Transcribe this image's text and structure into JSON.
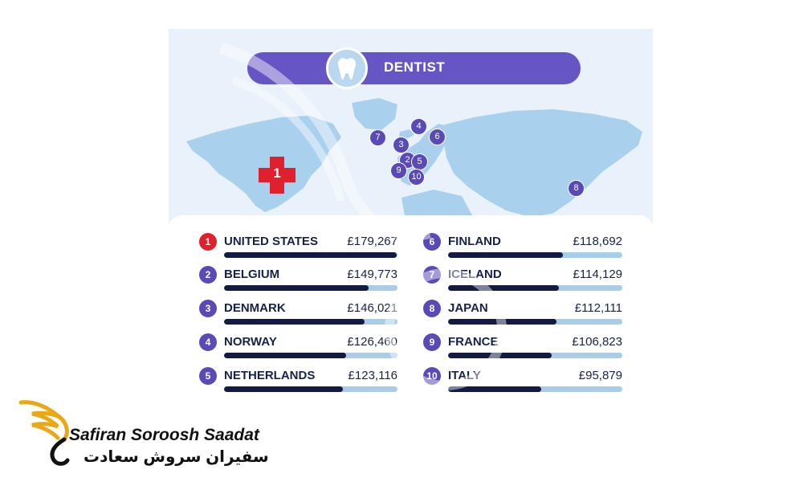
{
  "header": {
    "title": "DENTIST",
    "icon": "tooth-icon"
  },
  "colors": {
    "header": "#6655c4",
    "pin": "#5a4ab8",
    "first_place": "#e0202c",
    "bar_fill": "#121a45",
    "bar_track": "#a6cdeb",
    "map_land": "#a9d1ee"
  },
  "map": {
    "first_marker": "1",
    "pins": [
      "7",
      "4",
      "6",
      "3",
      "2",
      "5",
      "9",
      "10",
      "8"
    ]
  },
  "chart_data": {
    "type": "bar",
    "title": "DENTIST",
    "categories": [
      "UNITED STATES",
      "BELGIUM",
      "DENMARK",
      "NORWAY",
      "NETHERLANDS",
      "FINLAND",
      "ICELAND",
      "JAPAN",
      "FRANCE",
      "ITALY"
    ],
    "ranks": [
      "1",
      "2",
      "3",
      "4",
      "5",
      "6",
      "7",
      "8",
      "9",
      "10"
    ],
    "values": [
      179267,
      149773,
      146021,
      126460,
      123116,
      118692,
      114129,
      112111,
      106823,
      95879
    ],
    "labels": [
      "£179,267",
      "£149,773",
      "£146,021",
      "£126,460",
      "£123,116",
      "£118,692",
      "£114,129",
      "£112,111",
      "£106,823",
      "£95,879"
    ],
    "xlabel": "",
    "ylabel": ""
  },
  "brand": {
    "name_en": "Safiran Soroosh Saadat",
    "name_fa": "سفیران سروش سعادت",
    "logo_icon": "swan-wing-logo"
  }
}
